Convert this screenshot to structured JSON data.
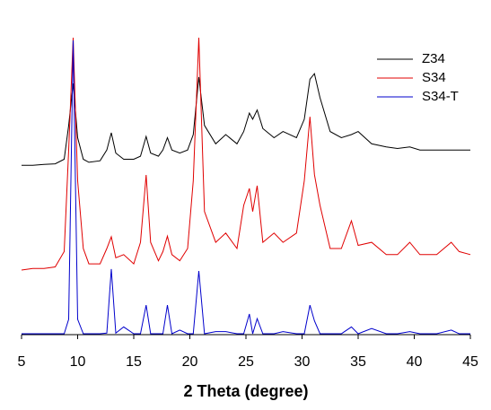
{
  "chart_data": {
    "type": "line",
    "x_label": "2 Theta (degree)",
    "x": [
      5,
      6,
      7,
      8,
      8.8,
      9.2,
      9.6,
      10.0,
      10.5,
      11,
      12,
      12.6,
      13.0,
      13.4,
      14.1,
      15,
      15.6,
      16.1,
      16.5,
      17.2,
      17.6,
      18.0,
      18.4,
      19.1,
      19.8,
      20.3,
      20.8,
      21.3,
      22.3,
      23.2,
      24.2,
      24.8,
      25.3,
      25.6,
      26.0,
      26.5,
      27.5,
      28.3,
      29.5,
      30.2,
      30.7,
      31.1,
      31.6,
      32.5,
      33.5,
      34.4,
      35.0,
      36.2,
      37.5,
      38.5,
      39.6,
      40.5,
      42,
      43.3,
      44,
      45
    ],
    "series": [
      {
        "name": "Z34",
        "color": "#000000",
        "values": [
          55,
          55,
          55.3,
          55.5,
          57,
          68,
          81.6,
          64,
          57,
          56,
          56.5,
          60,
          65.6,
          59,
          57,
          57,
          58,
          64.4,
          59,
          58,
          60,
          64,
          60,
          59,
          60,
          65,
          83.7,
          68,
          62,
          65,
          62,
          66,
          72,
          70,
          73,
          67,
          64,
          66,
          64,
          70,
          83,
          84.8,
          77,
          66,
          64,
          65,
          66,
          62,
          61,
          60.5,
          61,
          60,
          60,
          60,
          60,
          60
        ]
      },
      {
        "name": "S34",
        "color": "#e00000",
        "values": [
          21,
          21.5,
          21.5,
          22,
          27,
          60,
          96.5,
          50,
          28,
          23,
          23,
          28,
          31.8,
          25,
          26,
          23,
          30,
          51.9,
          30,
          24,
          27,
          32,
          26,
          24,
          28,
          50,
          96.5,
          40,
          30,
          33,
          28,
          42,
          47.5,
          40,
          48.4,
          30,
          33,
          30,
          33,
          50,
          70.8,
          52,
          42,
          28,
          28,
          37,
          29,
          30,
          26,
          26,
          30,
          26,
          26,
          30,
          27,
          26
        ]
      },
      {
        "name": "S34-T",
        "color": "#0000cc",
        "values": [
          0.3,
          0.3,
          0.3,
          0.3,
          0.3,
          5,
          95.6,
          5,
          0.3,
          0.3,
          0.3,
          0.5,
          21.3,
          0.5,
          2.5,
          0.3,
          0.3,
          9.6,
          0.3,
          0.3,
          0.3,
          9.6,
          0.3,
          1.5,
          0.3,
          0.3,
          20.7,
          0.3,
          1,
          1,
          0.3,
          0.3,
          6.7,
          0.3,
          5.2,
          0.3,
          0.3,
          1,
          0.3,
          0.3,
          9.6,
          4.5,
          0.3,
          0.3,
          0.3,
          2.5,
          0.3,
          2,
          0.3,
          0.3,
          1,
          0.3,
          0.3,
          1.5,
          0.3,
          0.3
        ]
      }
    ],
    "xlim": [
      5,
      45
    ],
    "xticks": [
      5,
      10,
      15,
      20,
      25,
      30,
      35,
      40,
      45
    ],
    "ylim": [
      0,
      100
    ],
    "legend": "upper-right"
  }
}
